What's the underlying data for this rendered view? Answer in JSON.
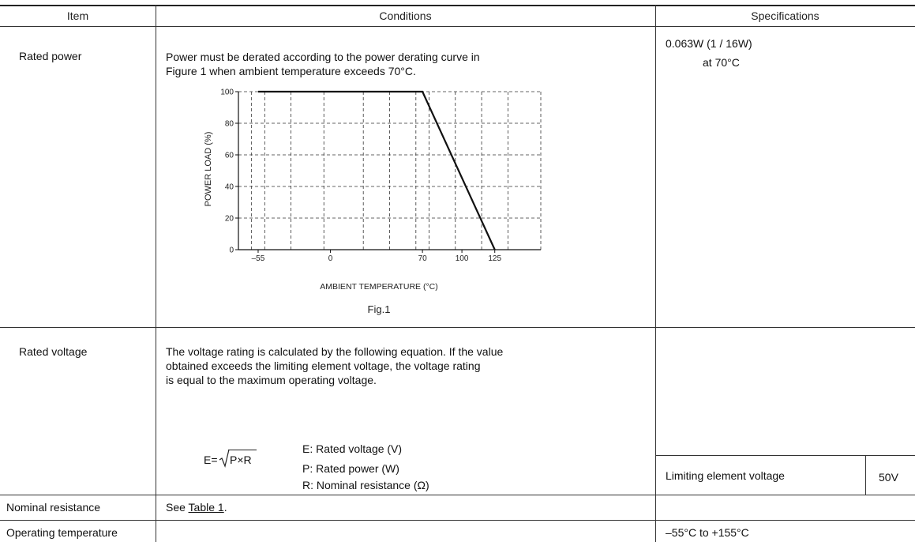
{
  "table": {
    "headers": {
      "item": "Item",
      "conditions": "Conditions",
      "specifications": "Specifications"
    },
    "rows": {
      "rated_power": {
        "item": "Rated power",
        "conditions_line1": "Power must be derated according to the power derating curve in",
        "conditions_line2": "Figure 1 when ambient temperature exceeds 70°C.",
        "figure_caption": "Fig.1",
        "spec_line1": "0.063W (1 / 16W)",
        "spec_line2": "at  70°C"
      },
      "rated_voltage": {
        "item": "Rated voltage",
        "conditions_line1": "The voltage rating is calculated by the following equation. If the value",
        "conditions_line2": "obtained exceeds the limiting element voltage, the voltage rating",
        "conditions_line3": "is equal to the maximum operating voltage.",
        "eq_left": "E=",
        "eq_radicand": "P×R",
        "legend_e": "E: Rated voltage (V)",
        "legend_p": "P: Rated power (W)",
        "legend_r": "R: Nominal resistance (Ω)",
        "limit_label": "Limiting element voltage",
        "limit_value": "50V"
      },
      "nominal_resistance": {
        "item": "Nominal resistance",
        "conditions_prefix": "See ",
        "conditions_link": "Table 1",
        "conditions_suffix": "."
      },
      "operating_temperature": {
        "item": "Operating temperature",
        "spec": "–55°C to +155°C"
      }
    }
  },
  "chart_data": {
    "type": "line",
    "xlabel": "AMBIENT  TEMPERATURE (°C)",
    "ylabel": "POWER  LOAD (%)",
    "xlim": [
      -70,
      160
    ],
    "ylim": [
      0,
      100
    ],
    "x_ticks": [
      -55,
      0,
      70,
      100,
      125
    ],
    "y_ticks": [
      0,
      20,
      40,
      60,
      80,
      100
    ],
    "x_tick_labels": [
      "–55",
      "0",
      "70",
      "100",
      "125"
    ],
    "y_tick_labels": [
      "0",
      "20",
      "40",
      "60",
      "80",
      "100"
    ],
    "grid": true,
    "series": [
      {
        "x": [
          -55,
          70,
          125
        ],
        "y": [
          100,
          100,
          0
        ]
      }
    ]
  }
}
